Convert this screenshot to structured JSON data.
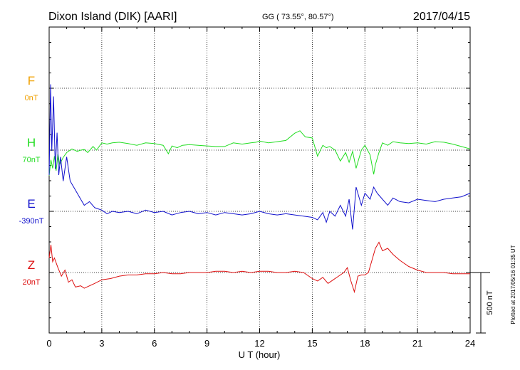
{
  "header": {
    "title": "Dixon Island (DIK)  [AARI]",
    "coords": "GG ( 73.55°,  80.57°)",
    "date": "2017/04/15"
  },
  "footer": {
    "xlabel": "U T (hour)",
    "scale_label": "500 nT",
    "plotted_note": "Plotted at 2017/05/16 01:35 UT"
  },
  "colors": {
    "F": "#f0a000",
    "H": "#22dd22",
    "E": "#1010cc",
    "Z": "#dd1010"
  },
  "chart_data": {
    "type": "line",
    "x_ticks": [
      "0",
      "3",
      "6",
      "9",
      "12",
      "15",
      "18",
      "21",
      "24"
    ],
    "xlim": [
      0,
      24
    ],
    "xlabel": "U T (hour)",
    "grid": true,
    "scale_bar_nT": 500,
    "series": [
      {
        "name": "F",
        "baseline_label": "0nT",
        "baseline_nT": 0,
        "color": "#f0a000",
        "x": [],
        "y": []
      },
      {
        "name": "H",
        "baseline_label": "70nT",
        "baseline_nT": 70,
        "color": "#22dd22",
        "x": [
          0.0,
          0.1,
          0.2,
          0.3,
          0.4,
          0.5,
          0.6,
          0.8,
          1.0,
          1.3,
          1.6,
          1.8,
          2.0,
          2.2,
          2.5,
          2.7,
          3.0,
          3.3,
          3.6,
          4.0,
          4.5,
          5.0,
          5.5,
          6.0,
          6.5,
          6.8,
          7.0,
          7.3,
          7.6,
          8.0,
          8.5,
          9.0,
          9.5,
          10.0,
          10.5,
          11.0,
          11.5,
          11.8,
          12.0,
          12.5,
          13.0,
          13.5,
          14.0,
          14.3,
          14.6,
          15.0,
          15.3,
          15.6,
          15.8,
          16.0,
          16.3,
          16.6,
          16.9,
          17.1,
          17.3,
          17.5,
          17.8,
          18.0,
          18.3,
          18.5,
          18.6,
          18.8,
          19.0,
          19.3,
          19.6,
          20.0,
          20.5,
          21.0,
          21.5,
          22.0,
          22.5,
          23.0,
          23.5,
          24.0
        ],
        "y": [
          -210,
          -80,
          -150,
          -50,
          -170,
          -30,
          -120,
          -60,
          -20,
          10,
          -10,
          0,
          5,
          -20,
          30,
          0,
          60,
          50,
          60,
          65,
          55,
          40,
          60,
          55,
          40,
          -30,
          35,
          20,
          40,
          45,
          40,
          35,
          30,
          30,
          60,
          50,
          60,
          65,
          75,
          60,
          70,
          80,
          140,
          160,
          110,
          100,
          -50,
          40,
          20,
          30,
          0,
          -90,
          -20,
          -100,
          -10,
          -150,
          0,
          40,
          -40,
          -200,
          -120,
          -20,
          60,
          40,
          70,
          60,
          55,
          60,
          50,
          70,
          65,
          50,
          30,
          10
        ]
      },
      {
        "name": "E",
        "baseline_label": "-390nT",
        "baseline_nT": -390,
        "color": "#1010cc",
        "x": [
          0.0,
          0.08,
          0.15,
          0.25,
          0.35,
          0.45,
          0.55,
          0.65,
          0.8,
          1.0,
          1.2,
          1.4,
          1.6,
          1.8,
          2.0,
          2.3,
          2.6,
          3.0,
          3.3,
          3.6,
          4.0,
          4.5,
          5.0,
          5.5,
          6.0,
          6.5,
          7.0,
          7.5,
          8.0,
          8.5,
          9.0,
          9.5,
          10.0,
          10.5,
          11.0,
          11.5,
          12.0,
          12.5,
          13.0,
          13.5,
          14.0,
          14.5,
          15.0,
          15.3,
          15.6,
          15.8,
          16.0,
          16.3,
          16.6,
          16.9,
          17.1,
          17.3,
          17.5,
          17.8,
          18.0,
          18.3,
          18.5,
          18.7,
          19.0,
          19.3,
          19.6,
          20.0,
          20.5,
          21.0,
          21.5,
          22.0,
          22.5,
          23.0,
          23.5,
          24.0
        ],
        "y": [
          300,
          1050,
          500,
          950,
          350,
          650,
          300,
          450,
          250,
          450,
          250,
          200,
          150,
          100,
          50,
          80,
          30,
          10,
          -20,
          0,
          -10,
          0,
          -20,
          10,
          -10,
          0,
          -30,
          -10,
          0,
          -20,
          -10,
          -30,
          -10,
          -20,
          -30,
          -20,
          0,
          -20,
          -30,
          -20,
          -30,
          -40,
          -50,
          -70,
          -10,
          -90,
          0,
          -40,
          50,
          -40,
          100,
          -150,
          200,
          50,
          150,
          100,
          200,
          150,
          100,
          50,
          110,
          80,
          70,
          100,
          90,
          80,
          100,
          110,
          120,
          150
        ]
      },
      {
        "name": "Z",
        "baseline_label": "20nT",
        "baseline_nT": 20,
        "color": "#dd1010",
        "x": [
          0.0,
          0.1,
          0.2,
          0.3,
          0.5,
          0.7,
          0.9,
          1.1,
          1.3,
          1.5,
          1.8,
          2.0,
          2.3,
          2.6,
          3.0,
          3.5,
          4.0,
          4.5,
          5.0,
          5.5,
          6.0,
          6.5,
          7.0,
          7.5,
          8.0,
          8.5,
          9.0,
          9.5,
          10.0,
          10.5,
          11.0,
          11.5,
          12.0,
          12.5,
          13.0,
          13.5,
          14.0,
          14.5,
          15.0,
          15.3,
          15.6,
          15.9,
          16.2,
          16.5,
          16.8,
          17.0,
          17.2,
          17.4,
          17.6,
          17.8,
          18.0,
          18.2,
          18.4,
          18.6,
          18.8,
          19.0,
          19.3,
          19.6,
          20.0,
          20.5,
          21.0,
          21.5,
          22.0,
          22.5,
          23.0,
          23.5,
          24.0
        ],
        "y": [
          120,
          230,
          90,
          120,
          40,
          -30,
          20,
          -80,
          -60,
          -120,
          -110,
          -130,
          -110,
          -90,
          -60,
          -50,
          -30,
          -20,
          -20,
          -10,
          -10,
          0,
          -10,
          -10,
          0,
          0,
          0,
          10,
          10,
          0,
          10,
          0,
          10,
          10,
          0,
          0,
          10,
          0,
          -50,
          -70,
          -40,
          -90,
          -60,
          -30,
          0,
          40,
          -70,
          -160,
          -30,
          -20,
          -20,
          0,
          100,
          200,
          250,
          180,
          200,
          150,
          100,
          50,
          20,
          0,
          0,
          0,
          -10,
          -10,
          -10
        ]
      }
    ]
  }
}
